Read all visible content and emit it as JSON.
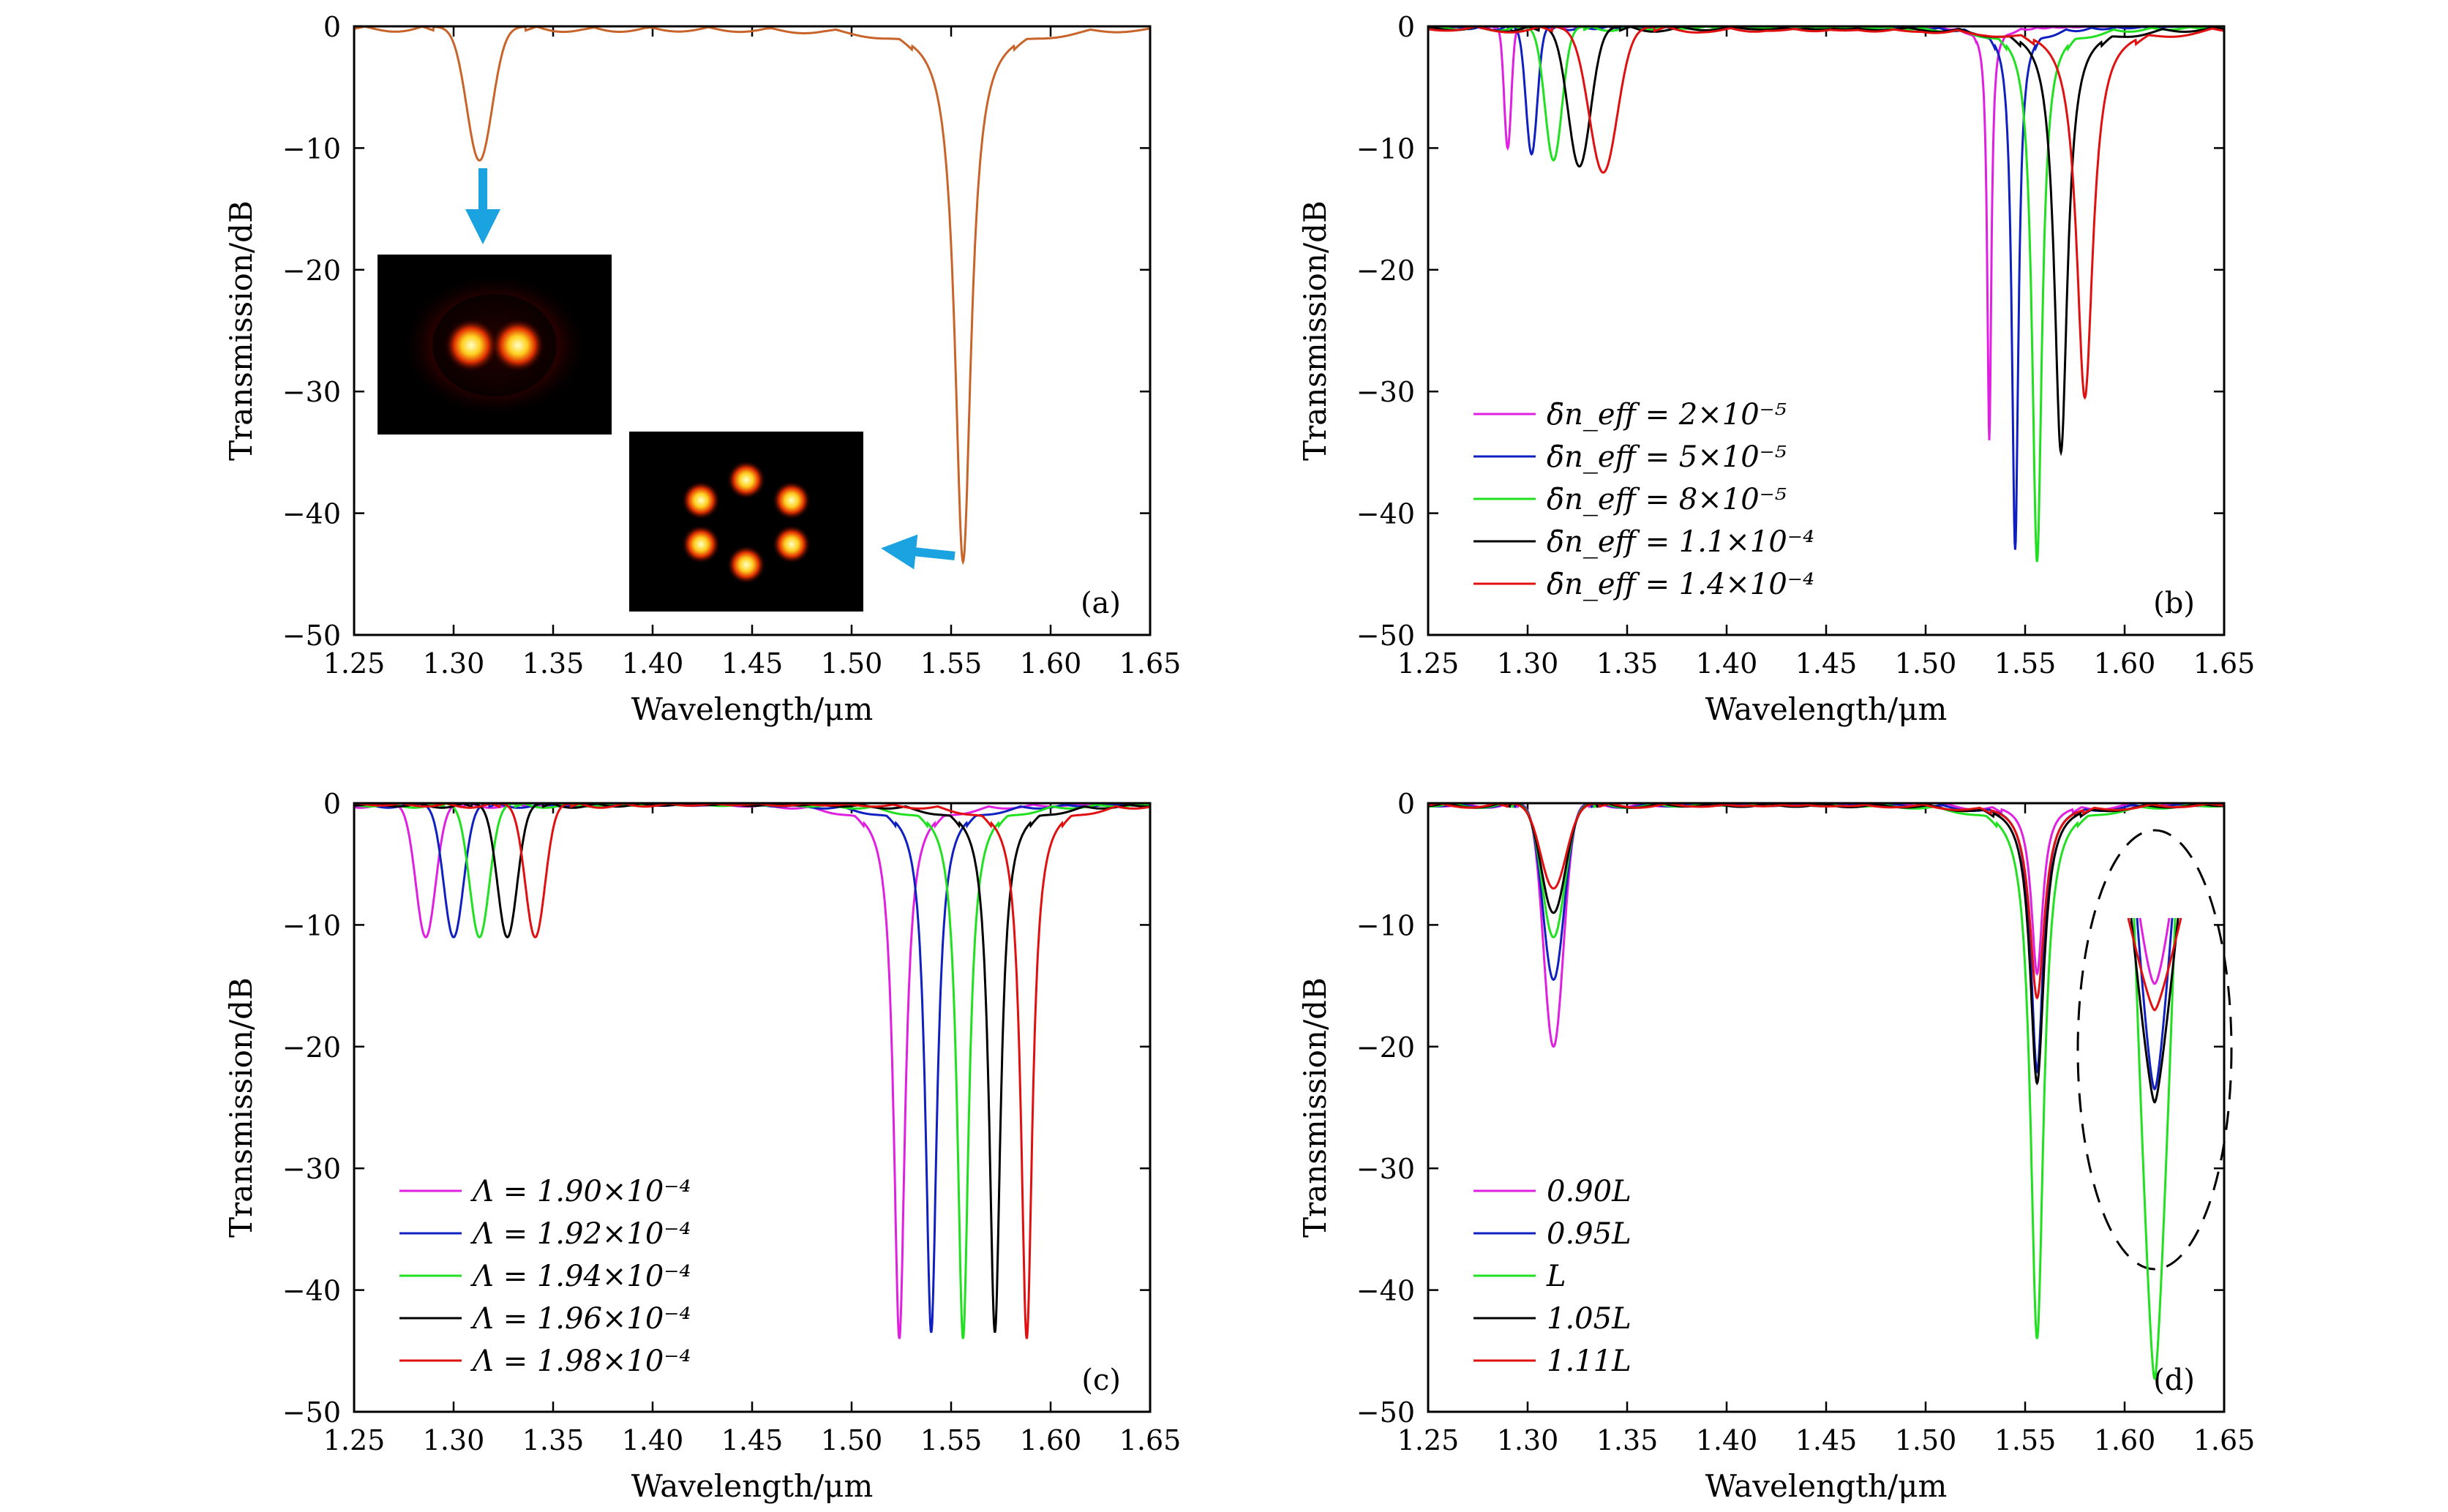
{
  "chart_data": [
    {
      "id": "a",
      "type": "line",
      "panel_label": "(a)",
      "xlabel": "Wavelength/μm",
      "ylabel": "Transmission/dB",
      "xlim": [
        1.25,
        1.65
      ],
      "ylim": [
        -50,
        0
      ],
      "xticks": [
        "1.25",
        "1.30",
        "1.35",
        "1.40",
        "1.45",
        "1.50",
        "1.55",
        "1.60",
        "1.65"
      ],
      "yticks": [
        "0",
        "−10",
        "−20",
        "−30",
        "−40",
        "−50"
      ],
      "grid": false,
      "insets": [
        "mode-profile-two-lobe",
        "mode-profile-six-lobe"
      ],
      "colors": {
        "curve": "#c8642a",
        "arrow": "#1aa3e0"
      },
      "series": [
        {
          "color": "#c8642a",
          "dips": [
            {
              "center": 1.313,
              "depth": -11,
              "width": 0.009,
              "shape": "smooth"
            },
            {
              "center": 1.556,
              "depth": -44,
              "width": 0.01,
              "shape": "sharp"
            }
          ],
          "sidelobe": 0.7
        }
      ]
    },
    {
      "id": "b",
      "type": "line",
      "panel_label": "(b)",
      "xlabel": "Wavelength/μm",
      "ylabel": "Transmission/dB",
      "xlim": [
        1.25,
        1.65
      ],
      "ylim": [
        -50,
        0
      ],
      "xticks": [
        "1.25",
        "1.30",
        "1.35",
        "1.40",
        "1.45",
        "1.50",
        "1.55",
        "1.60",
        "1.65"
      ],
      "yticks": [
        "0",
        "−10",
        "−20",
        "−30",
        "−40",
        "−50"
      ],
      "grid": false,
      "legend_position": "lower-left",
      "legend": [
        "δ̄n_eff = 2×10⁻⁵",
        "δ̄n_eff = 5×10⁻⁵",
        "δ̄n_eff = 8×10⁻⁵",
        "δ̄n_eff = 1.1×10⁻⁴",
        "δ̄n_eff = 1.4×10⁻⁴"
      ],
      "series": [
        {
          "color": "#e020e0",
          "dips": [
            {
              "center": 1.29,
              "depth": -10,
              "width": 0.0025,
              "shape": "smooth"
            },
            {
              "center": 1.532,
              "depth": -34,
              "width": 0.0025,
              "shape": "sharp"
            }
          ],
          "sidelobe": 0.3
        },
        {
          "color": "#1020c0",
          "dips": [
            {
              "center": 1.302,
              "depth": -10.5,
              "width": 0.004,
              "shape": "smooth"
            },
            {
              "center": 1.545,
              "depth": -43,
              "width": 0.004,
              "shape": "sharp"
            }
          ],
          "sidelobe": 0.5
        },
        {
          "color": "#20e020",
          "dips": [
            {
              "center": 1.313,
              "depth": -11,
              "width": 0.006,
              "shape": "smooth"
            },
            {
              "center": 1.556,
              "depth": -44,
              "width": 0.006,
              "shape": "sharp"
            }
          ],
          "sidelobe": 0.6
        },
        {
          "color": "#000000",
          "dips": [
            {
              "center": 1.326,
              "depth": -11.5,
              "width": 0.008,
              "shape": "smooth"
            },
            {
              "center": 1.568,
              "depth": -35,
              "width": 0.008,
              "shape": "sharp"
            }
          ],
          "sidelobe": 0.7
        },
        {
          "color": "#e01010",
          "dips": [
            {
              "center": 1.338,
              "depth": -12,
              "width": 0.01,
              "shape": "smooth"
            },
            {
              "center": 1.58,
              "depth": -30.5,
              "width": 0.01,
              "shape": "sharp"
            }
          ],
          "sidelobe": 0.8
        }
      ]
    },
    {
      "id": "c",
      "type": "line",
      "panel_label": "(c)",
      "xlabel": "Wavelength/μm",
      "ylabel": "Transmission/dB",
      "xlim": [
        1.25,
        1.65
      ],
      "ylim": [
        -50,
        0
      ],
      "xticks": [
        "1.25",
        "1.30",
        "1.35",
        "1.40",
        "1.45",
        "1.50",
        "1.55",
        "1.60",
        "1.65"
      ],
      "yticks": [
        "0",
        "−10",
        "−20",
        "−30",
        "−40",
        "−50"
      ],
      "grid": false,
      "legend_position": "lower-left",
      "legend": [
        "Λ = 1.90×10⁻⁴",
        "Λ = 1.92×10⁻⁴",
        "Λ = 1.94×10⁻⁴",
        "Λ = 1.96×10⁻⁴",
        "Λ = 1.98×10⁻⁴"
      ],
      "series": [
        {
          "color": "#e020e0",
          "dips": [
            {
              "center": 1.286,
              "depth": -11,
              "width": 0.007,
              "shape": "smooth"
            },
            {
              "center": 1.524,
              "depth": -44,
              "width": 0.007,
              "shape": "sharp"
            }
          ],
          "sidelobe": 0.6
        },
        {
          "color": "#1020c0",
          "dips": [
            {
              "center": 1.3,
              "depth": -11,
              "width": 0.007,
              "shape": "smooth"
            },
            {
              "center": 1.54,
              "depth": -43.5,
              "width": 0.007,
              "shape": "sharp"
            }
          ],
          "sidelobe": 0.6
        },
        {
          "color": "#20e020",
          "dips": [
            {
              "center": 1.313,
              "depth": -11,
              "width": 0.007,
              "shape": "smooth"
            },
            {
              "center": 1.556,
              "depth": -44,
              "width": 0.007,
              "shape": "sharp"
            }
          ],
          "sidelobe": 0.6
        },
        {
          "color": "#000000",
          "dips": [
            {
              "center": 1.327,
              "depth": -11,
              "width": 0.007,
              "shape": "smooth"
            },
            {
              "center": 1.572,
              "depth": -43.5,
              "width": 0.007,
              "shape": "sharp"
            }
          ],
          "sidelobe": 0.6
        },
        {
          "color": "#e01010",
          "dips": [
            {
              "center": 1.341,
              "depth": -11,
              "width": 0.007,
              "shape": "smooth"
            },
            {
              "center": 1.588,
              "depth": -44,
              "width": 0.007,
              "shape": "sharp"
            }
          ],
          "sidelobe": 0.6
        }
      ]
    },
    {
      "id": "d",
      "type": "line",
      "panel_label": "(d)",
      "xlabel": "Wavelength/μm",
      "ylabel": "Transmission/dB",
      "xlim": [
        1.25,
        1.65
      ],
      "ylim": [
        -50,
        0
      ],
      "xticks": [
        "1.25",
        "1.30",
        "1.35",
        "1.40",
        "1.45",
        "1.50",
        "1.55",
        "1.60",
        "1.65"
      ],
      "yticks": [
        "0",
        "−10",
        "−20",
        "−30",
        "−40",
        "−50"
      ],
      "grid": false,
      "legend_position": "lower-left",
      "legend": [
        "0.90L",
        "0.95L",
        "L",
        "1.05L",
        "1.11L"
      ],
      "zoom_inset": "dashed ellipse around the 1.556 μm dip",
      "series": [
        {
          "color": "#e020e0",
          "dips": [
            {
              "center": 1.313,
              "depth": -20,
              "width": 0.007,
              "shape": "smooth"
            },
            {
              "center": 1.556,
              "depth": -14,
              "width": 0.007,
              "shape": "sharp"
            }
          ],
          "sidelobe": 0.6
        },
        {
          "color": "#1020c0",
          "dips": [
            {
              "center": 1.313,
              "depth": -14.5,
              "width": 0.0075,
              "shape": "smooth"
            },
            {
              "center": 1.556,
              "depth": -22,
              "width": 0.0075,
              "shape": "sharp"
            }
          ],
          "sidelobe": 0.6
        },
        {
          "color": "#20e020",
          "dips": [
            {
              "center": 1.313,
              "depth": -11,
              "width": 0.008,
              "shape": "smooth"
            },
            {
              "center": 1.556,
              "depth": -44,
              "width": 0.008,
              "shape": "sharp"
            }
          ],
          "sidelobe": 0.6
        },
        {
          "color": "#000000",
          "dips": [
            {
              "center": 1.313,
              "depth": -9,
              "width": 0.0085,
              "shape": "smooth"
            },
            {
              "center": 1.556,
              "depth": -23,
              "width": 0.0085,
              "shape": "sharp"
            }
          ],
          "sidelobe": 0.6
        },
        {
          "color": "#e01010",
          "dips": [
            {
              "center": 1.313,
              "depth": -7,
              "width": 0.009,
              "shape": "smooth"
            },
            {
              "center": 1.556,
              "depth": -16,
              "width": 0.009,
              "shape": "sharp"
            }
          ],
          "sidelobe": 0.6
        }
      ]
    }
  ]
}
